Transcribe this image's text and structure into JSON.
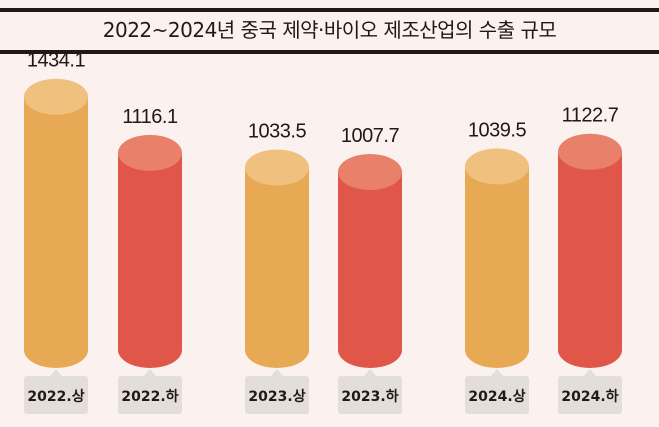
{
  "title": "2022~2024년 중국 제약·바이오 제조산업의 수출 규모",
  "colors": {
    "background": "#fbf1ee",
    "upper": "#e8a955",
    "upper_top": "#f0c07f",
    "lower": "#e0574a",
    "lower_top": "#e8806a",
    "tag": "#e4dedb"
  },
  "chart_data": {
    "type": "bar",
    "title": "2022~2024년 중국 제약·바이오 제조산업의 수출 규모",
    "categories": [
      "2022.상",
      "2022.하",
      "2023.상",
      "2023.하",
      "2024.상",
      "2024.하"
    ],
    "values": [
      1434.1,
      1116.1,
      1033.5,
      1007.7,
      1039.5,
      1122.7
    ],
    "value_labels": [
      "1434.1",
      "1116.1",
      "1033.5",
      "1007.7",
      "1039.5",
      "1122.7"
    ],
    "xlabel": "",
    "ylabel": "",
    "grid": false,
    "legend": "none"
  }
}
